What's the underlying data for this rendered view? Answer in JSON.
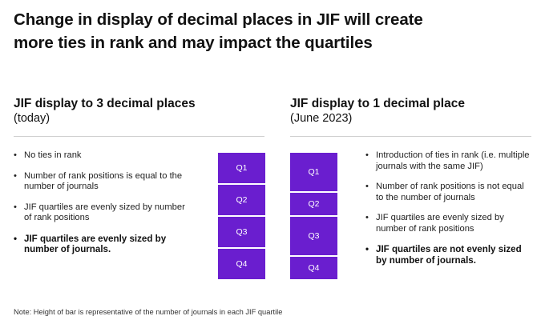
{
  "title": {
    "line1": "Change in display of decimal places in JIF will create",
    "line2": "more ties in rank and may impact the quartiles"
  },
  "left_column": {
    "heading": "JIF display to 3 decimal places",
    "subheading": "(today)",
    "bullets": [
      {
        "text": "No ties in rank",
        "bold": false
      },
      {
        "text": "Number of rank positions is equal to the number of journals",
        "bold": false
      },
      {
        "text": "JIF quartiles are evenly sized by number of rank positions",
        "bold": false
      },
      {
        "text": "JIF quartiles are evenly sized by number of journals.",
        "bold": true
      }
    ]
  },
  "right_column": {
    "heading": "JIF display to 1 decimal place",
    "subheading": "(June 2023)",
    "bullets": [
      {
        "text": "Introduction of ties in rank (i.e. multiple journals with the same JIF)",
        "bold": false
      },
      {
        "text": "Number of rank positions is not equal to the number of journals",
        "bold": false
      },
      {
        "text": "JIF quartiles are evenly sized by number of rank positions",
        "bold": false
      },
      {
        "text": "JIF quartiles are not evenly sized by number of journals.",
        "bold": true
      }
    ]
  },
  "bars": [
    {
      "label": "3 decimal places",
      "color": "#6a1ecf",
      "segments": [
        {
          "label": "Q1",
          "share": 0.25
        },
        {
          "label": "Q2",
          "share": 0.25
        },
        {
          "label": "Q3",
          "share": 0.25
        },
        {
          "label": "Q4",
          "share": 0.25
        }
      ]
    },
    {
      "label": "1 decimal place",
      "color": "#6a1ecf",
      "segments": [
        {
          "label": "Q1",
          "share": 0.313
        },
        {
          "label": "Q2",
          "share": 0.187
        },
        {
          "label": "Q3",
          "share": 0.313
        },
        {
          "label": "Q4",
          "share": 0.187
        }
      ]
    }
  ],
  "note": "Note: Height of bar is representative of the number of journals in each JIF quartile"
}
